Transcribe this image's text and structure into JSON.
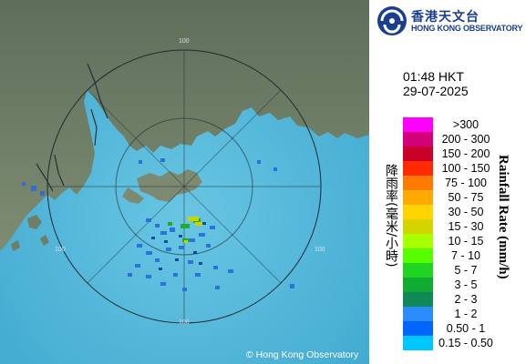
{
  "logo": {
    "name_cn": "香港天文台",
    "name_en": "HONG KONG OBSERVATORY"
  },
  "timestamp": {
    "time": "01:48 HKT",
    "date": "29-07-2025"
  },
  "legend": {
    "title_cn": "降雨率(毫米/小時)",
    "title_en": "Rainfall Rate (mm/h)",
    "items": [
      {
        "label": ">300",
        "color": "#ff00ff"
      },
      {
        "label": "200 - 300",
        "color": "#d4007a"
      },
      {
        "label": "150 - 200",
        "color": "#c8002a"
      },
      {
        "label": "100 - 150",
        "color": "#ff2a00"
      },
      {
        "label": "75 - 100",
        "color": "#ff7a00"
      },
      {
        "label": "50 - 75",
        "color": "#ffaa00"
      },
      {
        "label": "30 - 50",
        "color": "#ffd400"
      },
      {
        "label": "15 - 30",
        "color": "#d4d400"
      },
      {
        "label": "10 - 15",
        "color": "#aaff00"
      },
      {
        "label": "7 - 10",
        "color": "#55ff00"
      },
      {
        "label": "5 - 7",
        "color": "#22d422"
      },
      {
        "label": "3 - 5",
        "color": "#11aa33"
      },
      {
        "label": "2 - 3",
        "color": "#118855"
      },
      {
        "label": "1 - 2",
        "color": "#2a8cff"
      },
      {
        "label": "0.50 - 1",
        "color": "#0066ff"
      },
      {
        "label": "0.15 - 0.50",
        "color": "#00c8ff"
      }
    ]
  },
  "map": {
    "range_labels": [
      "100",
      "100",
      "100",
      "100"
    ],
    "copyright": "© Hong Kong Observatory"
  }
}
